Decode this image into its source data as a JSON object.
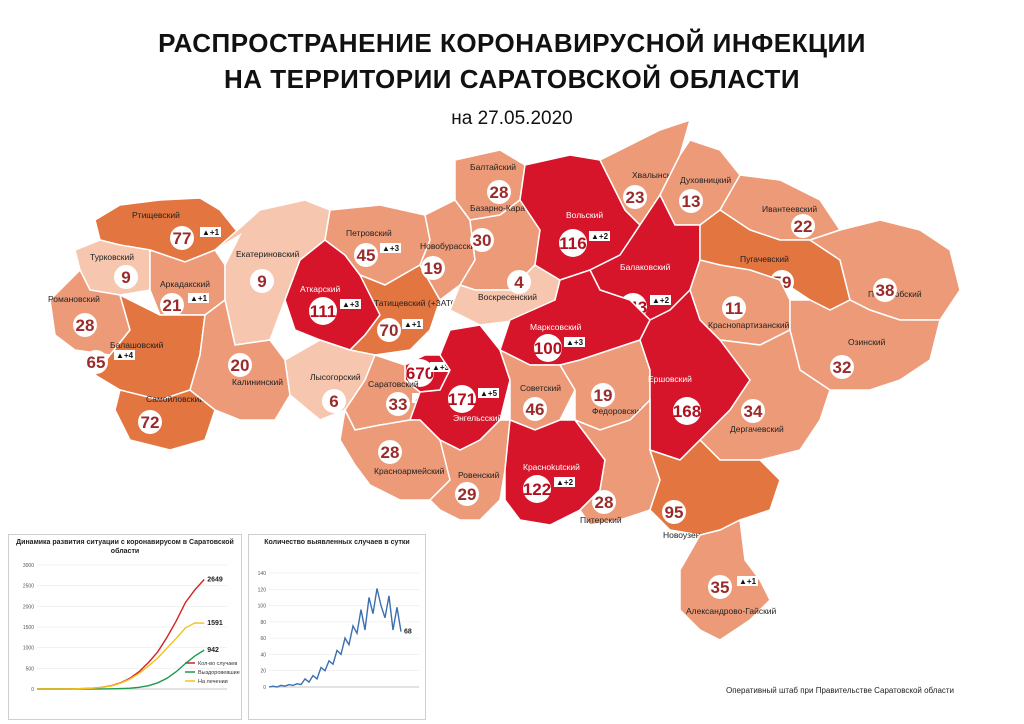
{
  "header": {
    "title_line1": "РАСПРОСТРАНЕНИЕ КОРОНАВИРУСНОЙ ИНФЕКЦИИ",
    "title_line2": "НА ТЕРРИТОРИИ САРАТОВСКОЙ ОБЛАСТИ",
    "date": "на 27.05.2020"
  },
  "colors": {
    "low": "#f6c6ae",
    "mid": "#ec9a78",
    "high": "#e27540",
    "vhigh": "#d6142a",
    "outline": "#ffffff"
  },
  "regions": [
    {
      "name": "Ртищевский",
      "count": "77",
      "delta": "▲+1",
      "level": "high"
    },
    {
      "name": "Турковский",
      "count": "9",
      "delta": "",
      "level": "low"
    },
    {
      "name": "Аркадакский",
      "count": "21",
      "delta": "▲+1",
      "level": "mid"
    },
    {
      "name": "Романовский",
      "count": "28",
      "delta": "",
      "level": "mid"
    },
    {
      "name": "Балашовский",
      "count": "65",
      "delta": "▲+4",
      "level": "high"
    },
    {
      "name": "Самойловский",
      "count": "72",
      "delta": "",
      "level": "high"
    },
    {
      "name": "Екатериновский",
      "count": "9",
      "delta": "",
      "level": "low"
    },
    {
      "name": "Аткарский",
      "count": "111",
      "delta": "▲+3",
      "level": "vhigh"
    },
    {
      "name": "Калининский",
      "count": "20",
      "delta": "",
      "level": "mid"
    },
    {
      "name": "Петровский",
      "count": "45",
      "delta": "▲+3",
      "level": "mid"
    },
    {
      "name": "Татищевский (+ЗАТО Светлый)",
      "count": "70",
      "delta": "▲+1",
      "level": "high"
    },
    {
      "name": "Лысогорский",
      "count": "6",
      "delta": "",
      "level": "low"
    },
    {
      "name": "Новобурасский",
      "count": "19",
      "delta": "",
      "level": "mid"
    },
    {
      "name": "Балтайский",
      "count": "28",
      "delta": "",
      "level": "mid"
    },
    {
      "name": "Базарно-Карабулакский",
      "count": "30",
      "delta": "",
      "level": "mid"
    },
    {
      "name": "Воскресенский",
      "count": "4",
      "delta": "",
      "level": "low"
    },
    {
      "name": "Вольский",
      "count": "116",
      "delta": "▲+2",
      "level": "vhigh"
    },
    {
      "name": "Хвалынский",
      "count": "23",
      "delta": "",
      "level": "mid"
    },
    {
      "name": "Духовницкий",
      "count": "13",
      "delta": "",
      "level": "mid"
    },
    {
      "name": "Балаковский",
      "count": "143",
      "delta": "▲+2",
      "level": "vhigh"
    },
    {
      "name": "Ивантеевский",
      "count": "22",
      "delta": "",
      "level": "mid"
    },
    {
      "name": "Пугачевский",
      "count": "59",
      "delta": "",
      "level": "high"
    },
    {
      "name": "Перелюбский",
      "count": "38",
      "delta": "",
      "level": "mid"
    },
    {
      "name": "Краснопартизанский",
      "count": "11",
      "delta": "",
      "level": "mid"
    },
    {
      "name": "Марксовский",
      "count": "100",
      "delta": "▲+3",
      "level": "vhigh"
    },
    {
      "name": "Озинский",
      "count": "32",
      "delta": "",
      "level": "mid"
    },
    {
      "name": "САРАТОВ",
      "count": "670",
      "delta": "▲+38",
      "level": "vhigh"
    },
    {
      "name": "Саратовский",
      "count": "33",
      "delta": "▲+2",
      "level": "mid"
    },
    {
      "name": "Энгельсский",
      "count": "171",
      "delta": "▲+5",
      "level": "vhigh"
    },
    {
      "name": "Советский",
      "count": "46",
      "delta": "",
      "level": "mid"
    },
    {
      "name": "Федоровский",
      "count": "19",
      "delta": "",
      "level": "mid"
    },
    {
      "name": "Ершовский",
      "count": "168",
      "delta": "",
      "level": "vhigh"
    },
    {
      "name": "Дергачевский",
      "count": "34",
      "delta": "",
      "level": "mid"
    },
    {
      "name": "Красноармейский",
      "count": "28",
      "delta": "",
      "level": "mid"
    },
    {
      "name": "Ровенский",
      "count": "29",
      "delta": "",
      "level": "mid"
    },
    {
      "name": "Красноkutский",
      "count": "122",
      "delta": "▲+2",
      "level": "vhigh"
    },
    {
      "name": "Питерский",
      "count": "28",
      "delta": "",
      "level": "mid"
    },
    {
      "name": "Новоузенский",
      "count": "95",
      "delta": "",
      "level": "high"
    },
    {
      "name": "Александрово-Гайский",
      "count": "35",
      "delta": "▲+1",
      "level": "mid"
    }
  ],
  "chart_data": [
    {
      "type": "line",
      "title": "Динамика развития ситуации с коронавирусом в Саратовской области",
      "ylim": [
        0,
        3000
      ],
      "yticks": [
        "0",
        "500",
        "1000",
        "1500",
        "2000",
        "2500",
        "3000"
      ],
      "series": [
        {
          "name": "Кол-во случаев",
          "color": "#d62020",
          "values": [
            0,
            0,
            0,
            0,
            5,
            10,
            20,
            40,
            80,
            150,
            260,
            420,
            640,
            900,
            1250,
            1650,
            2100,
            2400,
            2649
          ],
          "end_label": "2649"
        },
        {
          "name": "Выздоровевшие",
          "color": "#1a9a50",
          "values": [
            0,
            0,
            0,
            0,
            0,
            0,
            0,
            2,
            5,
            10,
            20,
            40,
            80,
            150,
            260,
            420,
            620,
            800,
            942
          ],
          "end_label": "942"
        },
        {
          "name": "На лечении",
          "color": "#f2c21a",
          "values": [
            0,
            0,
            0,
            0,
            5,
            10,
            20,
            38,
            75,
            140,
            240,
            380,
            560,
            750,
            990,
            1230,
            1480,
            1600,
            1591
          ],
          "end_label": "1591"
        }
      ]
    },
    {
      "type": "line",
      "title": "Количество выявленных случаев в сутки",
      "ylim": [
        0,
        140
      ],
      "yticks": [
        "0",
        "20",
        "40",
        "60",
        "80",
        "100",
        "120",
        "140"
      ],
      "series": [
        {
          "name": "",
          "color": "#3b6fb0",
          "values": [
            0,
            1,
            0,
            2,
            1,
            3,
            2,
            4,
            3,
            10,
            6,
            14,
            10,
            24,
            20,
            32,
            28,
            45,
            40,
            60,
            52,
            75,
            66,
            95,
            70,
            110,
            90,
            121,
            100,
            85,
            112,
            70,
            98,
            68
          ],
          "end_label": "68"
        }
      ]
    }
  ],
  "footer": {
    "credit": "Оперативный штаб при Правительстве Саратовской области"
  }
}
